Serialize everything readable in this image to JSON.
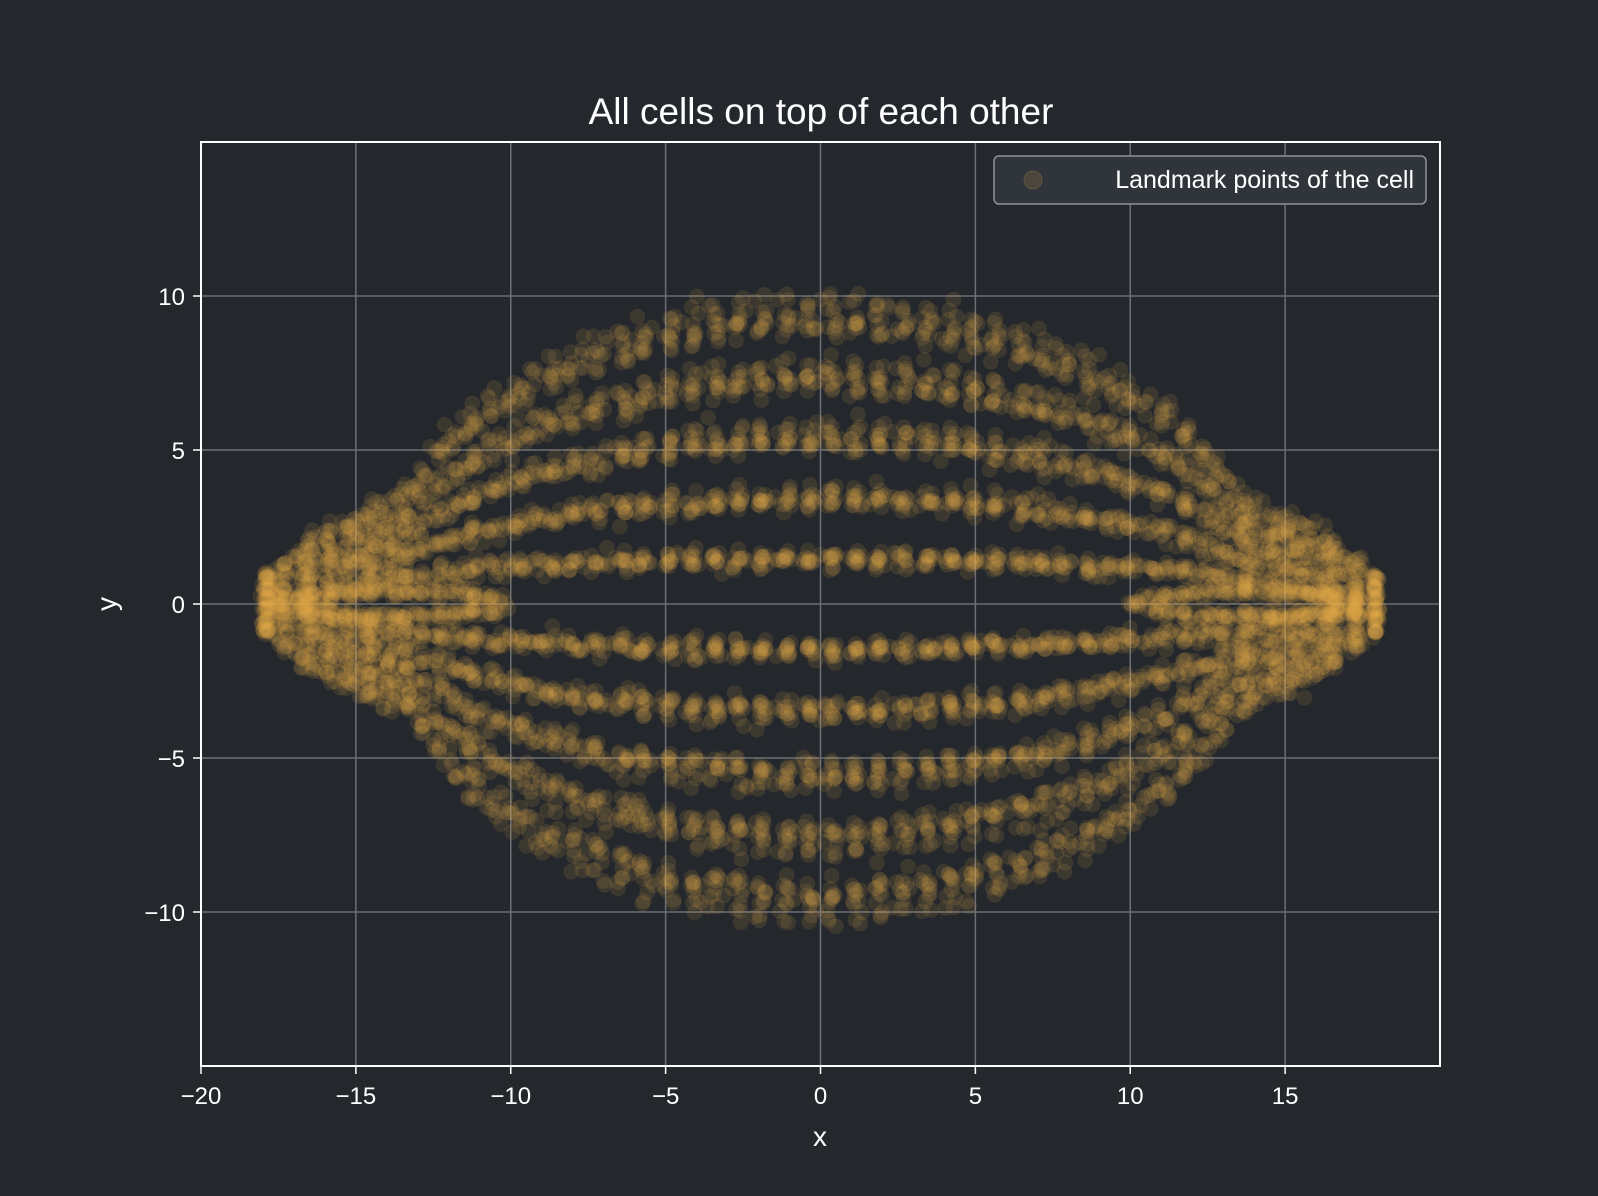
{
  "chart_data": {
    "type": "scatter",
    "title": "All cells on top of each other",
    "xlabel": "x",
    "ylabel": "y",
    "xlim": [
      -20,
      20
    ],
    "ylim": [
      -15,
      15
    ],
    "xticks": [
      -20,
      -15,
      -10,
      -5,
      0,
      5,
      10,
      15
    ],
    "yticks": [
      -10,
      -5,
      0,
      5,
      10
    ],
    "xtick_labels": [
      "−20",
      "−15",
      "−10",
      "−5",
      "0",
      "5",
      "10",
      "15"
    ],
    "ytick_labels": [
      "−10",
      "−5",
      "0",
      "5",
      "10"
    ],
    "grid": true,
    "legend_position": "top-right",
    "series": [
      {
        "name": "Landmark points of the cell",
        "color": "#e8b04a",
        "marker": "circle",
        "alpha": 0.12,
        "outline_contours": {
          "x_extent": [
            -18,
            18
          ],
          "outer_top_peak_y": 9.5,
          "outer_side_top_y": 5,
          "outer_side_x": 15,
          "inner_top_y": 1.5,
          "inner_bottom_y": -1.5,
          "outer_bottom_peak_y": -9.8
        }
      }
    ]
  }
}
